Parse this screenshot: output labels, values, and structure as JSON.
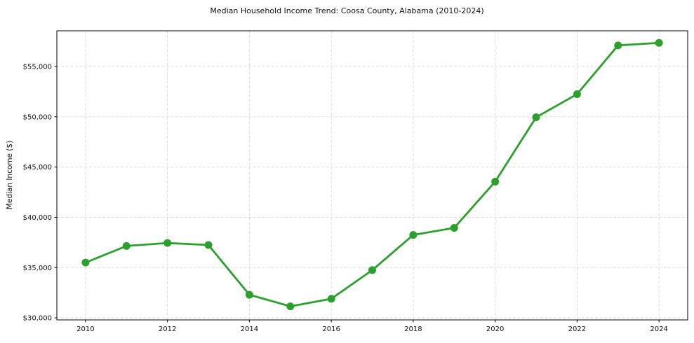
{
  "chart_data": {
    "type": "line",
    "title": "Median Household Income Trend: Coosa County, Alabama (2010-2024)",
    "xlabel": "",
    "ylabel": "Median Income ($)",
    "series_name": "Median household income",
    "x": [
      2010,
      2011,
      2012,
      2013,
      2014,
      2015,
      2016,
      2017,
      2018,
      2019,
      2020,
      2021,
      2022,
      2023,
      2024
    ],
    "values": [
      35500,
      37150,
      37450,
      37250,
      32300,
      31150,
      31900,
      34750,
      38250,
      38950,
      43550,
      49950,
      52250,
      57100,
      57350
    ],
    "xlim": [
      2009.3,
      2024.7
    ],
    "ylim": [
      29800,
      58550
    ],
    "x_ticks": [
      2010,
      2012,
      2014,
      2016,
      2018,
      2020,
      2022,
      2024
    ],
    "x_tick_labels": [
      "2010",
      "2012",
      "2014",
      "2016",
      "2018",
      "2020",
      "2022",
      "2024"
    ],
    "y_ticks": [
      30000,
      35000,
      40000,
      45000,
      50000,
      55000
    ],
    "y_tick_labels": [
      "$30,000",
      "$35,000",
      "$40,000",
      "$45,000",
      "$50,000",
      "$55,000"
    ],
    "grid": "dashed, both axes",
    "legend_position": "none",
    "line_color": "#2ca02c",
    "marker": "circle",
    "grid_color": "#d9d9d9",
    "axis_color": "#000000",
    "text_color": "#111111",
    "background_color": "#ffffff"
  }
}
